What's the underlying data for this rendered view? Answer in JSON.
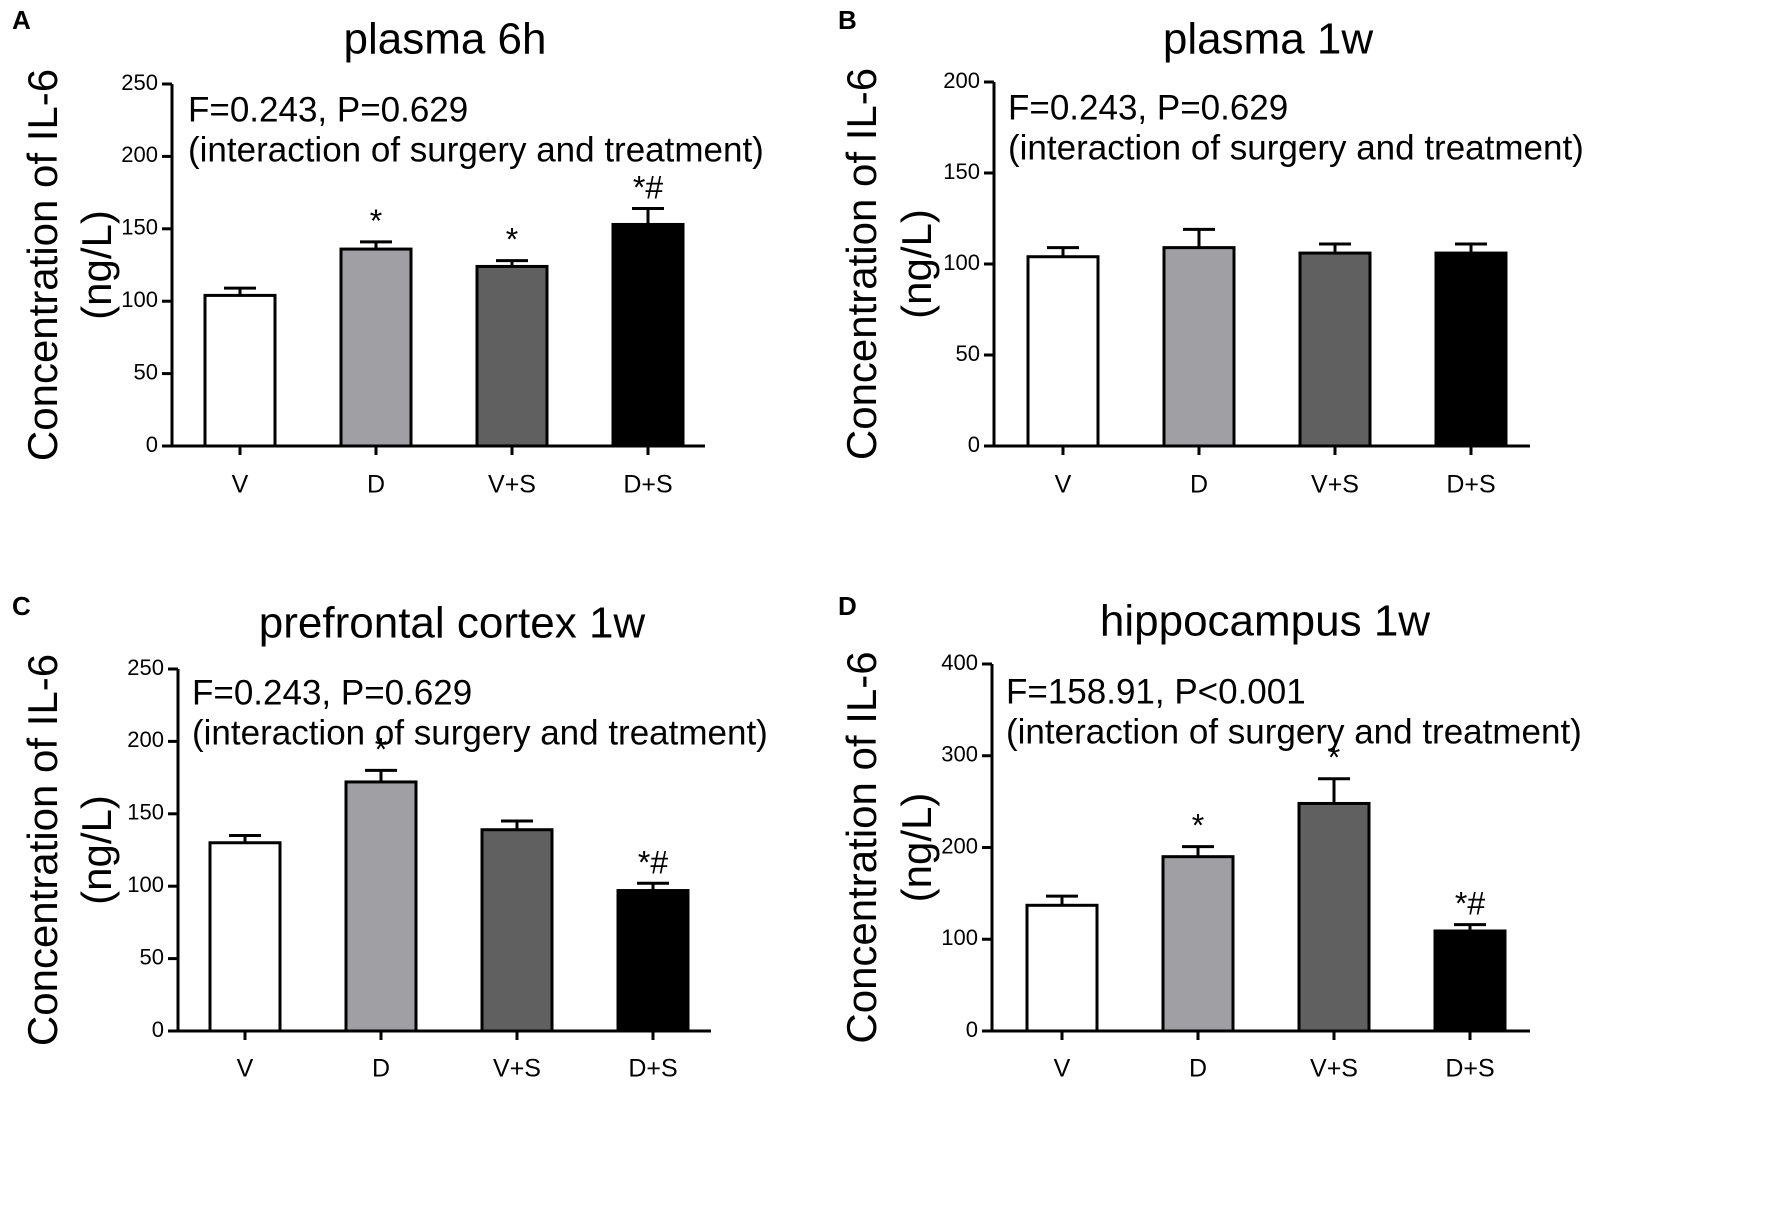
{
  "chart_data": [
    {
      "type": "bar",
      "panel": "A",
      "title": "plasma 6h",
      "ylabel": "Concentration of IL-6",
      "ylabel_unit": "(ng/L)",
      "categories": [
        "V",
        "D",
        "V+S",
        "D+S"
      ],
      "values": [
        104,
        136,
        124,
        153
      ],
      "errors": [
        5,
        5,
        4,
        11
      ],
      "significance": [
        "",
        "*",
        "*",
        "*#"
      ],
      "annotation": [
        "F=0.243, P=0.629",
        "(interaction of surgery and treatment)"
      ],
      "ylim": [
        0,
        250
      ],
      "yticks": [
        0,
        50,
        100,
        150,
        200,
        250
      ],
      "colors": [
        "#ffffff",
        "#a0a0a4",
        "#606060",
        "#000000"
      ]
    },
    {
      "type": "bar",
      "panel": "B",
      "title": "plasma 1w",
      "ylabel": "Concentration of IL-6",
      "ylabel_unit": "(ng/L)",
      "categories": [
        "V",
        "D",
        "V+S",
        "D+S"
      ],
      "values": [
        104,
        109,
        106,
        106
      ],
      "errors": [
        5,
        10,
        5,
        5
      ],
      "significance": [
        "",
        "",
        "",
        ""
      ],
      "annotation": [
        "F=0.243, P=0.629",
        "(interaction of surgery and treatment)"
      ],
      "ylim": [
        0,
        200
      ],
      "yticks": [
        0,
        50,
        100,
        150,
        200
      ],
      "colors": [
        "#ffffff",
        "#a0a0a4",
        "#606060",
        "#000000"
      ]
    },
    {
      "type": "bar",
      "panel": "C",
      "title": "prefrontal cortex 1w",
      "ylabel": "Concentration of IL-6",
      "ylabel_unit": "(ng/L)",
      "categories": [
        "V",
        "D",
        "V+S",
        "D+S"
      ],
      "values": [
        130,
        172,
        139,
        97
      ],
      "errors": [
        5,
        8,
        6,
        5
      ],
      "significance": [
        "",
        "*",
        "",
        "*#"
      ],
      "annotation": [
        "F=0.243, P=0.629",
        "(interaction of surgery and treatment)"
      ],
      "ylim": [
        0,
        250
      ],
      "yticks": [
        0,
        50,
        100,
        150,
        200,
        250
      ],
      "colors": [
        "#ffffff",
        "#a0a0a4",
        "#606060",
        "#000000"
      ]
    },
    {
      "type": "bar",
      "panel": "D",
      "title": "hippocampus 1w",
      "ylabel": "Concentration of IL-6",
      "ylabel_unit": "(ng/L)",
      "categories": [
        "V",
        "D",
        "V+S",
        "D+S"
      ],
      "values": [
        137,
        190,
        248,
        109
      ],
      "errors": [
        10,
        11,
        27,
        7
      ],
      "significance": [
        "",
        "*",
        "*",
        "*#"
      ],
      "annotation": [
        "F=158.91, P<0.001",
        "(interaction of surgery and treatment)"
      ],
      "ylim": [
        0,
        400
      ],
      "yticks": [
        0,
        100,
        200,
        300,
        400
      ],
      "colors": [
        "#ffffff",
        "#a0a0a4",
        "#606060",
        "#000000"
      ]
    }
  ]
}
